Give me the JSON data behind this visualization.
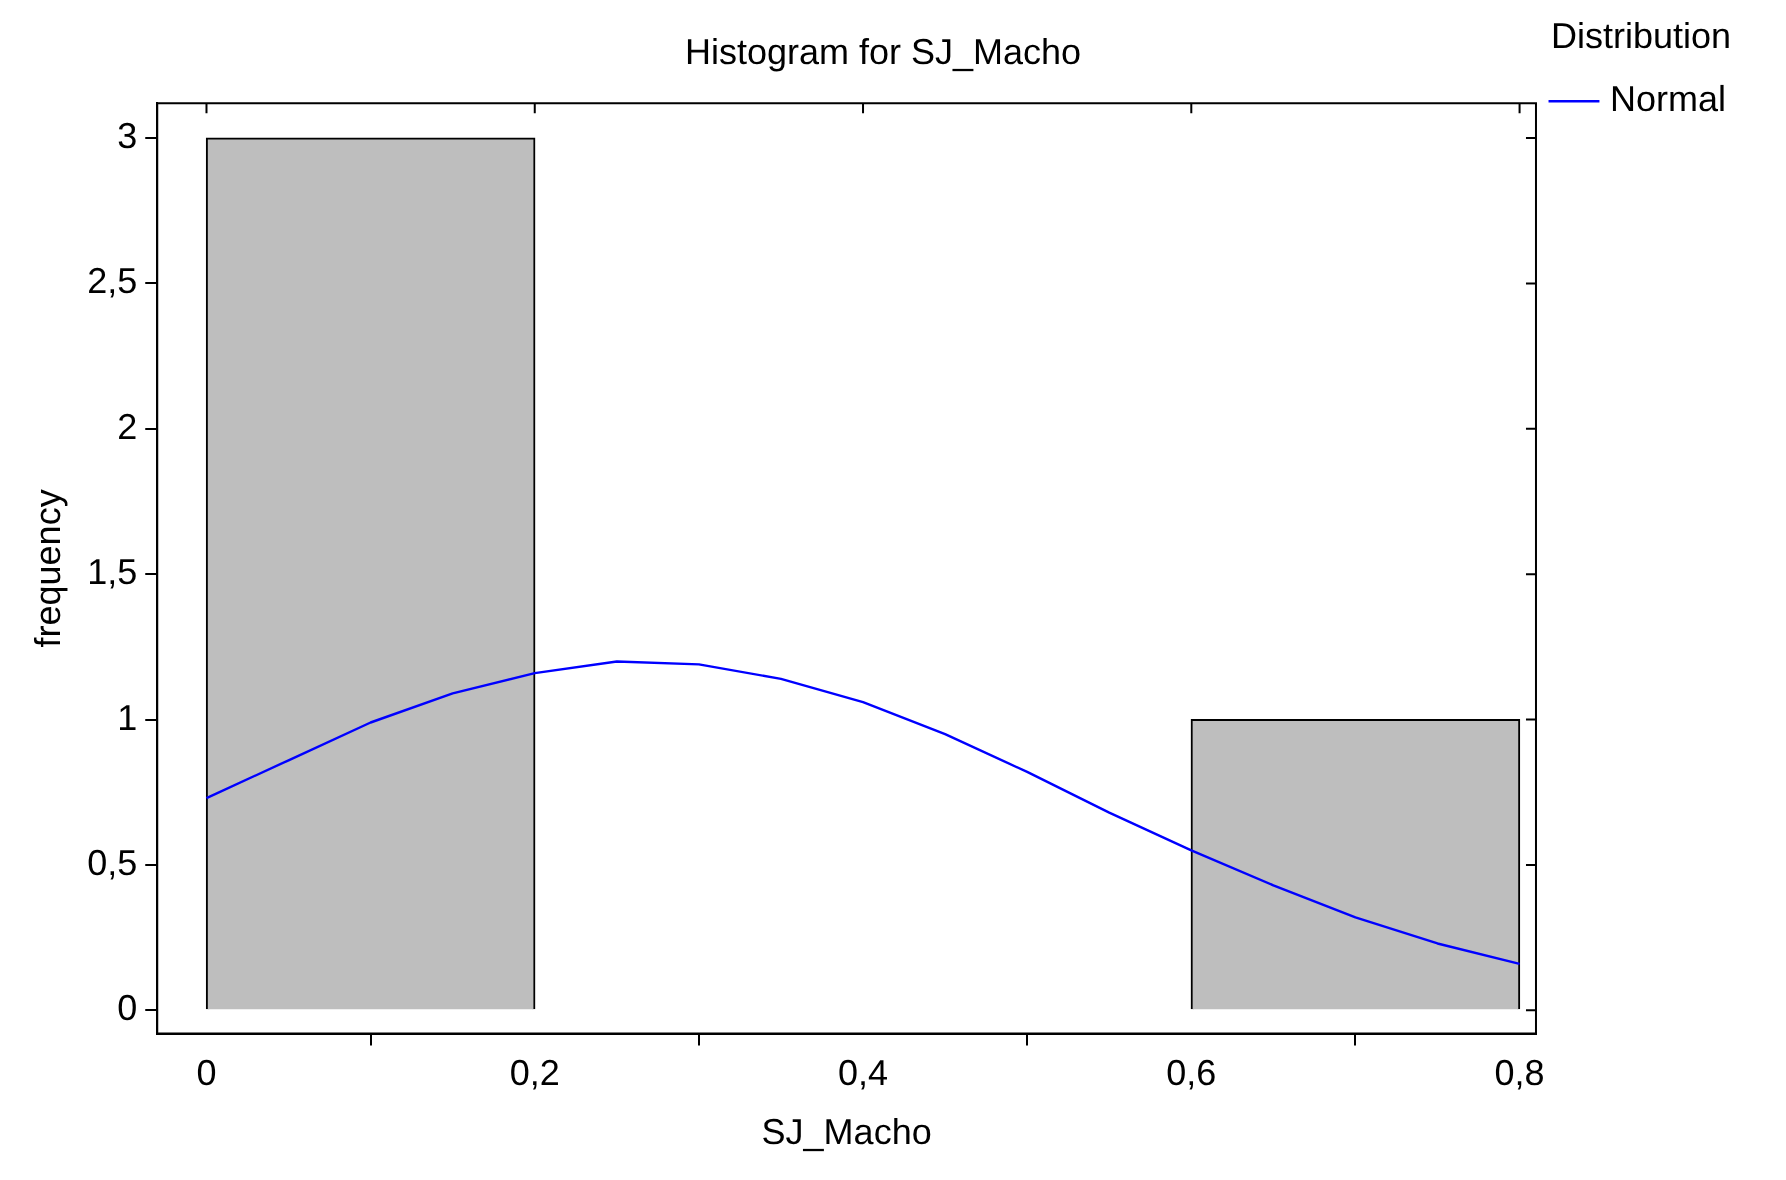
{
  "chart_data": {
    "type": "histogram",
    "title": "Histogram for SJ_Macho",
    "xlabel": "SJ_Macho",
    "ylabel": "frequency",
    "legend_title": "Distribution",
    "legend": "top right",
    "color": "#bebebe",
    "bins": [
      0,
      0.2,
      0.4,
      0.6,
      0.8
    ],
    "values": [
      3,
      0,
      0,
      1
    ],
    "series": [
      {
        "name": "Normal",
        "type": "line",
        "color": "#0000ff",
        "x": [
          0,
          0.05,
          0.1,
          0.15,
          0.2,
          0.25,
          0.3,
          0.35,
          0.4,
          0.45,
          0.5,
          0.55,
          0.6,
          0.65,
          0.7,
          0.75,
          0.8
        ],
        "values": [
          0.73,
          0.86,
          0.99,
          1.09,
          1.16,
          1.2,
          1.19,
          1.14,
          1.06,
          0.95,
          0.82,
          0.68,
          0.55,
          0.43,
          0.32,
          0.23,
          0.16
        ]
      }
    ],
    "xlim": [
      -0.03,
      0.81
    ],
    "ylim": [
      -0.08,
      3.12
    ],
    "xticks": [
      {
        "value": 0,
        "label": "0"
      },
      {
        "value": 0.2,
        "label": "0,2"
      },
      {
        "value": 0.4,
        "label": "0,4"
      },
      {
        "value": 0.6,
        "label": "0,6"
      },
      {
        "value": 0.8,
        "label": "0,8"
      }
    ],
    "yticks": [
      {
        "value": 0,
        "label": "0"
      },
      {
        "value": 0.5,
        "label": "0,5"
      },
      {
        "value": 1,
        "label": "1"
      },
      {
        "value": 1.5,
        "label": "1,5"
      },
      {
        "value": 2,
        "label": "2"
      },
      {
        "value": 2.5,
        "label": "2,5"
      },
      {
        "value": 3,
        "label": "3"
      }
    ],
    "grid": false,
    "marker": "none"
  }
}
